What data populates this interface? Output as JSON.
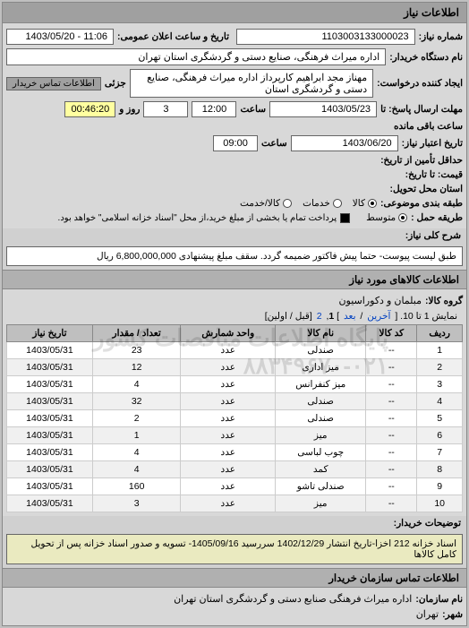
{
  "panel_title": "اطلاعات نیاز",
  "fields": {
    "req_number_label": "شماره نیاز:",
    "req_number": "1103003133000023",
    "announce_label": "تاریخ و ساعت اعلان عمومی:",
    "announce_value": "11:06 - 1403/05/20",
    "buyer_org_label": "نام دستگاه خریدار:",
    "buyer_org": "اداره میراث فرهنگی، صنایع دستی و گردشگری استان تهران",
    "requester_label": "ایجاد کننده درخواست:",
    "requester": "مهناز مجد ابراهیم کارپرداز اداره میراث فرهنگی، صنایع دستی و گردشگری استان",
    "partial_label": "جزئی",
    "contact_link": "اطلاعات تماس خریدار",
    "reply_deadline_label": "مهلت ارسال پاسخ: تا",
    "reply_date": "1403/05/23",
    "time_label": "ساعت",
    "reply_time": "12:00",
    "days_left": "3",
    "days_left_label": "روز و",
    "time_left": "00:46:20",
    "time_left_label": "ساعت باقی مانده",
    "credit_valid_label": "تاریخ اعتبار نیاز:",
    "credit_date": "1403/06/20",
    "credit_time": "09:00",
    "price_from_label": "حداقل تأمین از تاریخ:",
    "price_to_label": "قیمت: تا تاریخ:",
    "delivery_place_label": "استان محل تحویل:",
    "budget_row_label": "طبقه بندی موضوعی:",
    "budget_options": {
      "kala": "کالا",
      "khadamat": "خدمات",
      "both": "کالا/خدمت"
    },
    "budget_selected": "kala",
    "trans_type_label": "طریقه حمل :",
    "trans_options": {
      "avg": "متوسط"
    },
    "payment_note_label": "",
    "payment_note": "پرداخت تمام یا بخشی از مبلغ خرید،از محل \"اسناد خزانه اسلامی\" خواهد بود.",
    "payment_checked": true,
    "main_desc_label": "شرح کلی نیاز:",
    "main_desc": "طبق لیست پیوست- حتما پیش فاکتور ضمیمه گردد. سقف مبلغ پیشنهادی 6,800,000,000 ریال"
  },
  "goods": {
    "section_title": "اطلاعات کالاهای مورد نیاز",
    "group_label": "گروه کالا:",
    "group_value": "مبلمان و دکوراسیون",
    "pager_text": "نمایش 1 تا 10. [",
    "pager_last": "آخرین",
    "pager_next": "بعد",
    "pager_nums": [
      "1",
      "2"
    ],
    "pager_tail": "[قبل / اولین]",
    "columns": [
      "ردیف",
      "کد کالا",
      "نام کالا",
      "واحد شمارش",
      "تعداد / مقدار",
      "تاریخ نیاز"
    ],
    "rows": [
      [
        "1",
        "--",
        "صندلی",
        "عدد",
        "23",
        "1403/05/31"
      ],
      [
        "2",
        "--",
        "میز اداری",
        "عدد",
        "12",
        "1403/05/31"
      ],
      [
        "3",
        "--",
        "میز کنفرانس",
        "عدد",
        "4",
        "1403/05/31"
      ],
      [
        "4",
        "--",
        "صندلی",
        "عدد",
        "32",
        "1403/05/31"
      ],
      [
        "5",
        "--",
        "صندلی",
        "عدد",
        "2",
        "1403/05/31"
      ],
      [
        "6",
        "--",
        "میز",
        "عدد",
        "1",
        "1403/05/31"
      ],
      [
        "7",
        "--",
        "چوب لباسی",
        "عدد",
        "4",
        "1403/05/31"
      ],
      [
        "8",
        "--",
        "کمد",
        "عدد",
        "4",
        "1403/05/31"
      ],
      [
        "9",
        "--",
        "صندلی تاشو",
        "عدد",
        "160",
        "1403/05/31"
      ],
      [
        "10",
        "--",
        "میز",
        "عدد",
        "3",
        "1403/05/31"
      ]
    ],
    "watermark": "پایگاه اطلاعات مناقصات کشور\n۰۲۱-۸۸۳۴۹۶۷۰"
  },
  "footer": {
    "notes_label": "توضیحات خریدار:",
    "notes": "اسناد خزانه 212 اخزا-تاریخ انتشار 1402/12/29 سررسید 1405/09/16- تسویه و صدور اسناد خزانه پس از تحویل کامل کالاها",
    "contact_section": "اطلاعات تماس سازمان خریدار",
    "org_label": "نام سازمان:",
    "org": "اداره میراث فرهنگی صنایع دستی و گردشگری استان تهران",
    "city_label": "شهر:",
    "city": "تهران"
  }
}
